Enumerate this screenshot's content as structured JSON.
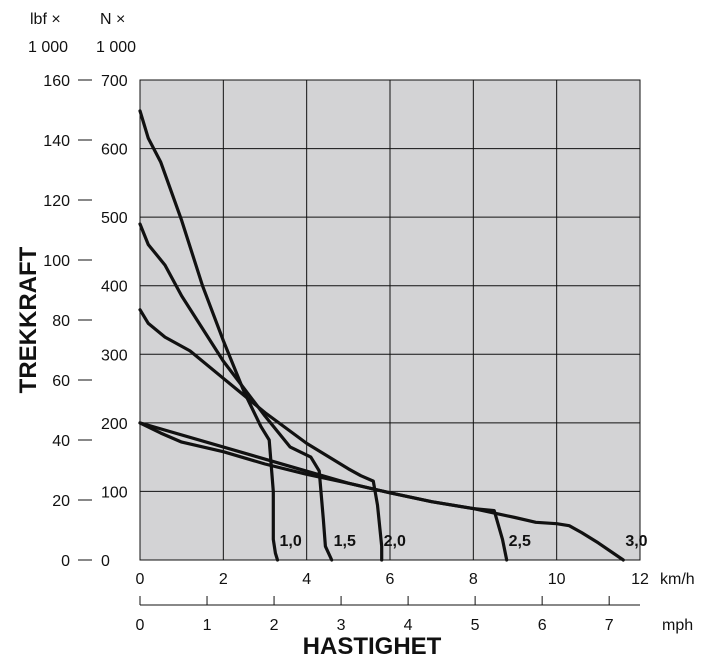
{
  "chart_data": {
    "type": "line",
    "xlabel": "HASTIGHET",
    "ylabel": "TREKKRAFT",
    "x_unit": "km/h",
    "x_unit_secondary": "mph",
    "y_unit_lbf": [
      "lbf ×",
      "1 000"
    ],
    "y_unit_n": [
      "N ×",
      "1 000"
    ],
    "xlim": [
      0,
      12
    ],
    "ylim": [
      0,
      700
    ],
    "ylim_lbf": [
      0,
      160
    ],
    "xlim_mph": [
      0,
      7.46
    ],
    "grid": true,
    "x_ticks": [
      "0",
      "2",
      "4",
      "6",
      "8",
      "10",
      "12"
    ],
    "x_ticks_mph": [
      "0",
      "1",
      "2",
      "3",
      "4",
      "5",
      "6",
      "7"
    ],
    "y_ticks_n": [
      "0",
      "100",
      "200",
      "300",
      "400",
      "500",
      "600",
      "700"
    ],
    "y_ticks_lbf": [
      "0",
      "20",
      "40",
      "60",
      "80",
      "100",
      "120",
      "140",
      "160"
    ],
    "series": [
      {
        "name": "1,0",
        "x": [
          0,
          0.2,
          0.5,
          1.0,
          1.5,
          2.0,
          2.5,
          2.9,
          3.1,
          3.2,
          3.2,
          3.25,
          3.3
        ],
        "y": [
          655,
          615,
          580,
          495,
          400,
          320,
          245,
          195,
          175,
          100,
          30,
          10,
          0
        ]
      },
      {
        "name": "1,5",
        "x": [
          0,
          0.2,
          0.6,
          1.0,
          2.0,
          3.0,
          3.6,
          4.1,
          4.3,
          4.4,
          4.45,
          4.6
        ],
        "y": [
          490,
          460,
          430,
          385,
          290,
          210,
          165,
          150,
          130,
          60,
          20,
          0
        ]
      },
      {
        "name": "2,0",
        "x": [
          0,
          0.2,
          0.6,
          1.2,
          2.0,
          3.0,
          4.0,
          5.0,
          5.3,
          5.6,
          5.7,
          5.8,
          5.8
        ],
        "y": [
          365,
          345,
          325,
          305,
          265,
          215,
          170,
          133,
          123,
          115,
          80,
          20,
          0
        ]
      },
      {
        "name": "2,5",
        "x": [
          0,
          0.5,
          1.0,
          2.0,
          3.0,
          4.0,
          5.0,
          6.0,
          7.0,
          8.0,
          8.5,
          8.7,
          8.8
        ],
        "y": [
          200,
          185,
          172,
          158,
          140,
          125,
          112,
          98,
          85,
          75,
          72,
          30,
          0
        ]
      },
      {
        "name": "3,0",
        "x": [
          0,
          5.0,
          6.0,
          7.0,
          8.0,
          9.0,
          9.5,
          10.0,
          10.3,
          10.6,
          11.0,
          11.6
        ],
        "y": [
          200,
          112,
          98,
          85,
          75,
          62,
          55,
          53,
          50,
          40,
          25,
          0
        ]
      }
    ]
  }
}
